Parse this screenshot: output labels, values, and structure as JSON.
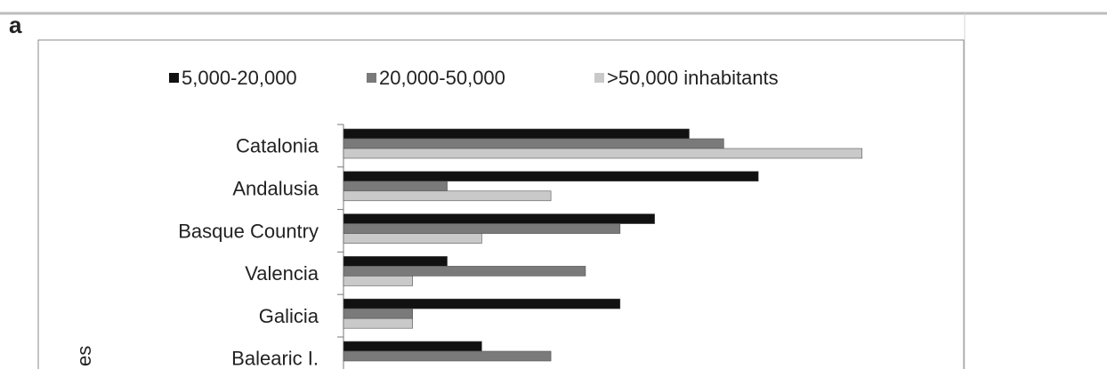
{
  "panel_label": "a",
  "chart_data": {
    "type": "hbar",
    "y_label": "es",
    "categories": [
      "Catalonia",
      "Andalusia",
      "Basque Country",
      "Valencia",
      "Galicia",
      "Balearic I."
    ],
    "series": [
      {
        "name": "5,000-20,000",
        "color": "#111111",
        "values": [
          10,
          12,
          9,
          3,
          8,
          4
        ]
      },
      {
        "name": "20,000-50,000",
        "color": "#7a7a7a",
        "values": [
          11,
          3,
          8,
          7,
          2,
          6
        ]
      },
      {
        "name": ">50,000 inhabitants",
        "color": "#c9c9c9",
        "values": [
          15,
          6,
          4,
          2,
          2,
          null
        ]
      }
    ]
  }
}
